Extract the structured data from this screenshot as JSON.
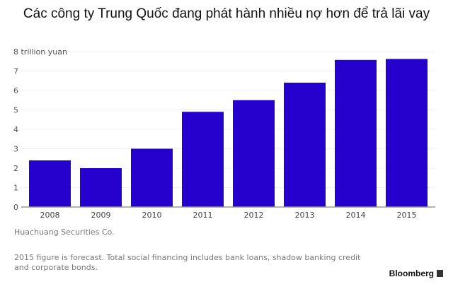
{
  "chart_data": {
    "type": "bar",
    "title": "Các công ty Trung Quốc đang phát hành nhiều nợ hơn để trả lãi vay",
    "xlabel": "",
    "ylabel": "trillion yuan",
    "ylim": [
      0,
      8
    ],
    "yticks": [
      "0",
      "1",
      "2",
      "3",
      "4",
      "5",
      "6",
      "7",
      "8 trillion yuan"
    ],
    "categories": [
      "2008",
      "2009",
      "2010",
      "2011",
      "2012",
      "2013",
      "2014",
      "2015"
    ],
    "values": [
      2.4,
      2.0,
      3.0,
      4.9,
      5.5,
      6.4,
      7.57,
      7.62
    ],
    "bar_color": "#2600cc",
    "grid": true
  },
  "source": "Huachuang Securities Co.",
  "note": "2015 figure is forecast. Total social financing includes bank loans, shadow banking credit and corporate bonds.",
  "brand": "Bloomberg"
}
